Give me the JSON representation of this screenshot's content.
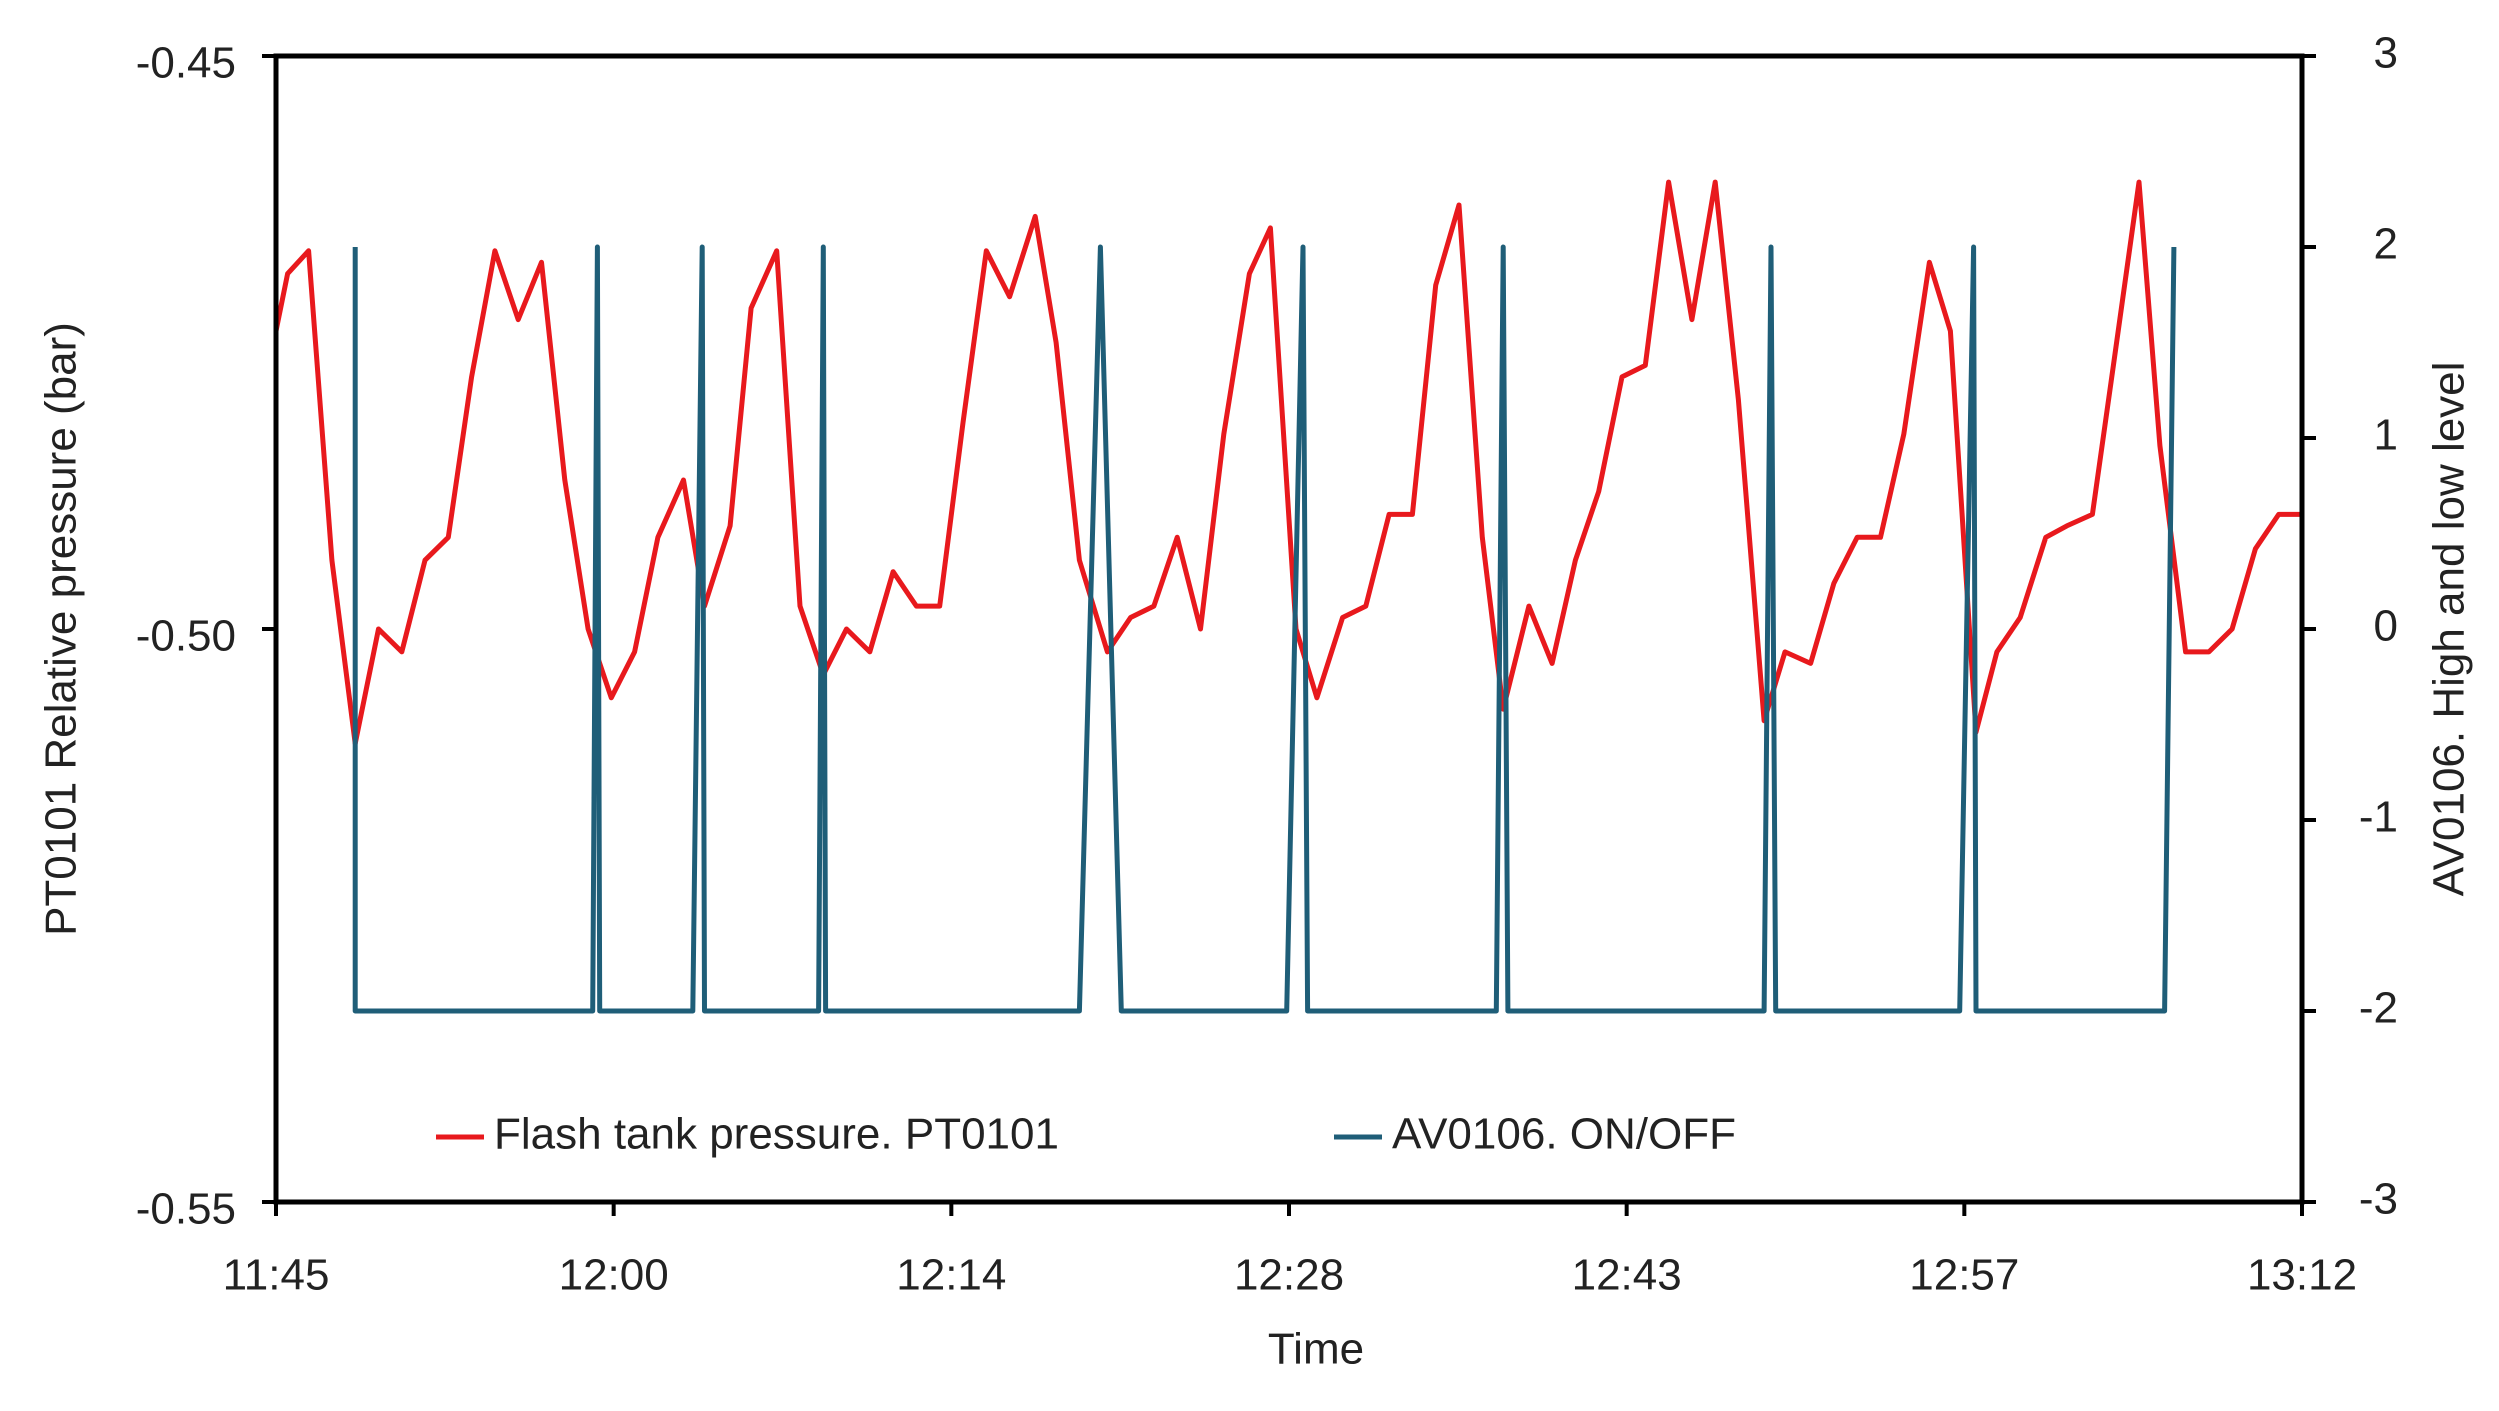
{
  "chart_data": {
    "type": "line",
    "xlabel": "Time",
    "ylabel": "PT0101 Relative pressure (bar)",
    "y2label": "AV0106. High and low level",
    "xlim": [
      705,
      792
    ],
    "xticks": [
      {
        "value": 705,
        "label": "11:45"
      },
      {
        "value": 719.5,
        "label": "12:00"
      },
      {
        "value": 734,
        "label": "12:14"
      },
      {
        "value": 748.5,
        "label": "12:28"
      },
      {
        "value": 763,
        "label": "12:43"
      },
      {
        "value": 777.5,
        "label": "12:57"
      },
      {
        "value": 792,
        "label": "13:12"
      }
    ],
    "ylim": [
      -0.55,
      -0.45
    ],
    "yticks": [
      -0.55,
      {
        "value": -0.5,
        "label": "-0.50"
      },
      -0.45
    ],
    "y2lim": [
      -3,
      3
    ],
    "y2ticks": [
      -3,
      -2,
      -1,
      0,
      1,
      2,
      3
    ],
    "legend": "lower center",
    "series": [
      {
        "name": "Flash tank pressure. PT0101",
        "color": "#e8191d",
        "axis": "y",
        "x": [
          705,
          705.5,
          706.4,
          707.4,
          708.4,
          709.4,
          710.4,
          711.4,
          712.4,
          713.4,
          714.4,
          715.4,
          716.4,
          717.4,
          718.4,
          719.4,
          720.4,
          721.4,
          722.5,
          723.4,
          724.5,
          725.4,
          726.5,
          727.5,
          728.5,
          729.5,
          730.5,
          731.5,
          732.5,
          733.5,
          734.5,
          735.5,
          736.5,
          737.6,
          738.5,
          739.5,
          740.7,
          741.7,
          742.7,
          743.7,
          744.7,
          745.7,
          746.8,
          747.7,
          748.8,
          749.7,
          750.8,
          751.8,
          752.8,
          753.8,
          754.8,
          755.8,
          756.8,
          757.7,
          758.8,
          759.8,
          760.8,
          761.8,
          762.8,
          763.8,
          764.8,
          765.8,
          766.8,
          767.8,
          768.9,
          769.8,
          770.9,
          771.9,
          772.9,
          773.9,
          774.9,
          776,
          776.9,
          778,
          778.9,
          779.9,
          781,
          781.9,
          783,
          783.9,
          785,
          785.9,
          787,
          788,
          789,
          790,
          791,
          792
        ],
        "values": [
          -0.474,
          -0.469,
          -0.467,
          -0.494,
          -0.51,
          -0.5,
          -0.502,
          -0.494,
          -0.492,
          -0.478,
          -0.467,
          -0.473,
          -0.468,
          -0.487,
          -0.5,
          -0.506,
          -0.502,
          -0.492,
          -0.487,
          -0.498,
          -0.491,
          -0.472,
          -0.467,
          -0.498,
          -0.504,
          -0.5,
          -0.502,
          -0.495,
          -0.498,
          -0.498,
          -0.482,
          -0.467,
          -0.471,
          -0.464,
          -0.475,
          -0.494,
          -0.502,
          -0.499,
          -0.498,
          -0.492,
          -0.5,
          -0.483,
          -0.469,
          -0.465,
          -0.5,
          -0.506,
          -0.499,
          -0.498,
          -0.49,
          -0.49,
          -0.47,
          -0.463,
          -0.492,
          -0.507,
          -0.498,
          -0.503,
          -0.494,
          -0.488,
          -0.478,
          -0.477,
          -0.461,
          -0.473,
          -0.461,
          -0.48,
          -0.508,
          -0.502,
          -0.503,
          -0.496,
          -0.492,
          -0.492,
          -0.483,
          -0.468,
          -0.474,
          -0.509,
          -0.502,
          -0.499,
          -0.492,
          -0.491,
          -0.49,
          -0.477,
          -0.461,
          -0.484,
          -0.502,
          -0.502,
          -0.5,
          -0.493,
          -0.49,
          -0.49
        ]
      },
      {
        "name": "AV0106. ON/OFF",
        "color": "#1f5e78",
        "axis": "y2",
        "x": [
          708.4,
          708.4,
          718.6,
          718.8,
          718.9,
          722.9,
          723.3,
          723.4,
          728.3,
          728.5,
          728.6,
          739.5,
          740.4,
          741.3,
          748.4,
          749.1,
          749.3,
          757.4,
          757.7,
          757.9,
          768.9,
          769.2,
          769.4,
          777.3,
          777.9,
          778,
          786.1,
          786.5
        ],
        "values": [
          2,
          -2,
          -2,
          2,
          -2,
          -2,
          2,
          -2,
          -2,
          2,
          -2,
          -2,
          2,
          -2,
          -2,
          2,
          -2,
          -2,
          2,
          -2,
          -2,
          2,
          -2,
          -2,
          2,
          -2,
          -2,
          2
        ]
      }
    ]
  }
}
